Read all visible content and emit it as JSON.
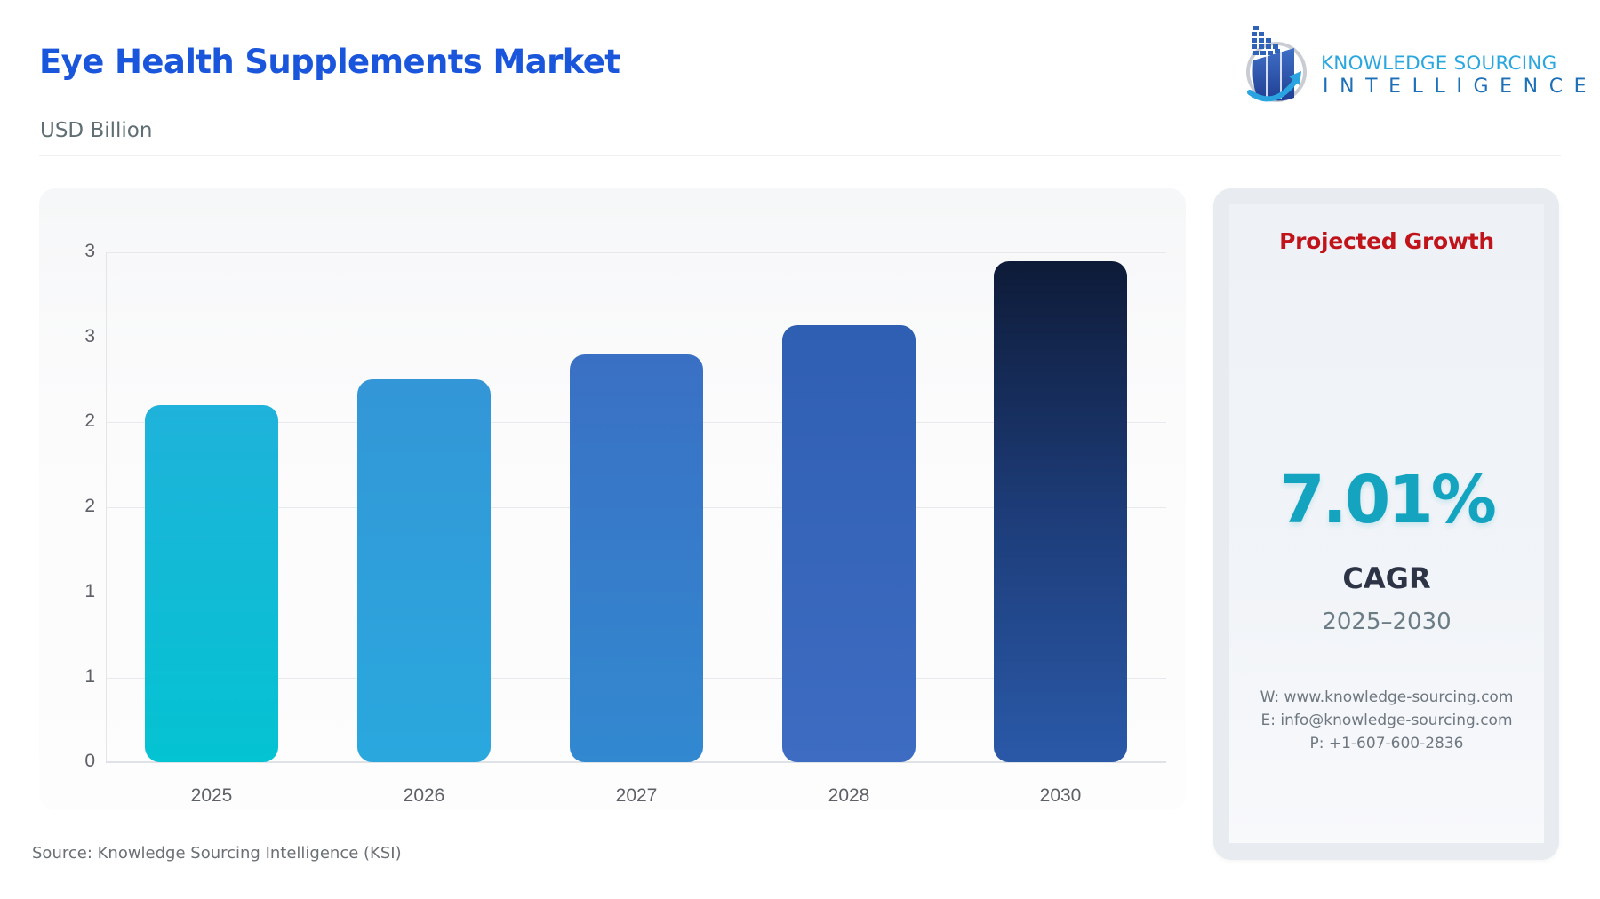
{
  "header": {
    "title": "Eye Health Supplements Market",
    "subtitle": "USD Billion"
  },
  "logo": {
    "line1": "KNOWLEDGE SOURCING",
    "line2": "INTELLIGENCE",
    "icon": "bar-chart-arrow-icon"
  },
  "chart_data": {
    "type": "bar",
    "title": "Eye Health Supplements Market",
    "subtitle": "USD Billion",
    "xlabel": "",
    "ylabel": "USD Billion",
    "categories": [
      "2025",
      "2026",
      "2027",
      "2028",
      "2030"
    ],
    "values": [
      2.1,
      2.25,
      2.4,
      2.57,
      2.95
    ],
    "ylim": [
      0,
      3
    ],
    "yticks": [
      0,
      0.5,
      1,
      1.5,
      2,
      2.5,
      3
    ],
    "ytick_labels": [
      "0",
      "1",
      "1",
      "2",
      "2",
      "3",
      "3"
    ],
    "grid": true,
    "legend": null,
    "colors": [
      "#0fbcd6",
      "#2ea0dc",
      "#367fca",
      "#3767bc",
      "#1e4583"
    ]
  },
  "chart": {
    "ytick_labels": [
      "0",
      "1",
      "1",
      "2",
      "2",
      "3",
      "3"
    ],
    "xtick_labels": [
      "2025",
      "2026",
      "2027",
      "2028",
      "2030"
    ]
  },
  "source": "Source: Knowledge Sourcing Intelligence (KSI)",
  "panel": {
    "heading": "Projected Growth",
    "cagr_value": "7.01%",
    "cagr_label": "CAGR",
    "period": "2025–2030",
    "contact": {
      "website": "W: www.knowledge-sourcing.com",
      "email": "E: info@knowledge-sourcing.com",
      "phone": "P: +1-607-600-2836"
    }
  },
  "colors": {
    "title": "#1a56db",
    "heading_red": "#c0141a",
    "cagr_teal": "#14a4c0"
  }
}
